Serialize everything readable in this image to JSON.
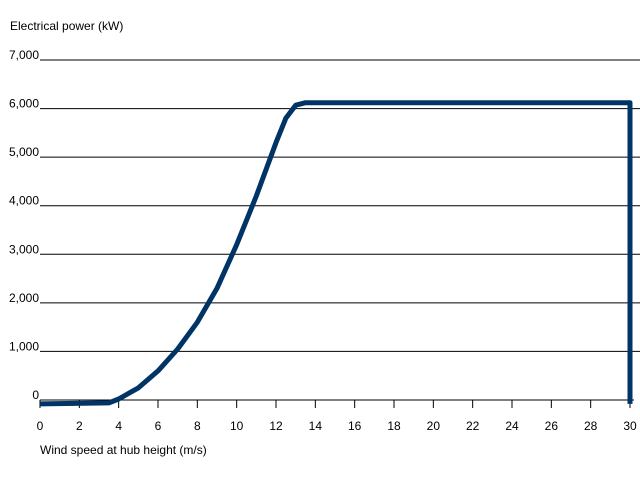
{
  "chart_data": {
    "type": "line",
    "title": "",
    "ylabel": "Electrical power (kW)",
    "xlabel": "Wind speed at hub height (m/s)",
    "xlim": [
      0,
      30
    ],
    "ylim": [
      0,
      7000
    ],
    "x_ticks": [
      "0",
      "2",
      "4",
      "6",
      "8",
      "10",
      "12",
      "14",
      "16",
      "18",
      "20",
      "22",
      "24",
      "26",
      "28",
      "30"
    ],
    "y_ticks": [
      "0",
      "1,000",
      "2,000",
      "3,000",
      "4,000",
      "5,000",
      "6,000",
      "7,000"
    ],
    "y_tick_values": [
      0,
      1000,
      2000,
      3000,
      4000,
      5000,
      6000,
      7000
    ],
    "x_tick_values": [
      0,
      2,
      4,
      6,
      8,
      10,
      12,
      14,
      16,
      18,
      20,
      22,
      24,
      26,
      28,
      30
    ],
    "grid": "horizontal",
    "legend": "none",
    "series": [
      {
        "color": "#003366",
        "points": [
          [
            0,
            -80
          ],
          [
            3.5,
            -60
          ],
          [
            4,
            20
          ],
          [
            5,
            250
          ],
          [
            6,
            600
          ],
          [
            7,
            1050
          ],
          [
            8,
            1600
          ],
          [
            9,
            2300
          ],
          [
            10,
            3200
          ],
          [
            11,
            4200
          ],
          [
            12,
            5300
          ],
          [
            12.5,
            5800
          ],
          [
            13,
            6070
          ],
          [
            13.5,
            6120
          ],
          [
            14,
            6120
          ],
          [
            30,
            6120
          ],
          [
            30,
            -80
          ]
        ]
      }
    ]
  }
}
